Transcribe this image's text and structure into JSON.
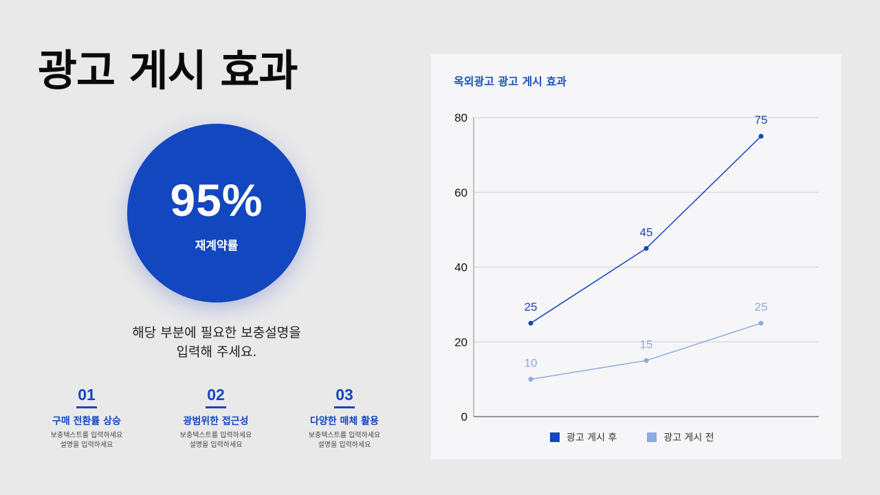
{
  "page": {
    "title": "광고 게시 효과"
  },
  "highlight": {
    "value": "95%",
    "label": "재계약률",
    "color": "#1247c0"
  },
  "description": {
    "line1": "해당 부분에 필요한 보충설명을",
    "line2": "입력해 주세요."
  },
  "features": [
    {
      "number": "01",
      "heading": "구매 전환률 상승",
      "body1": "보충텍스트를 입력하세요",
      "body2": "설명을 입력하세요"
    },
    {
      "number": "02",
      "heading": "광범위한 접근성",
      "body1": "보충텍스트를 입력하세요",
      "body2": "설명을 입력하세요"
    },
    {
      "number": "03",
      "heading": "다양한 매체 활용",
      "body1": "보충텍스트를 입력하세요",
      "body2": "설명을 입력하세요"
    }
  ],
  "chart_data": {
    "type": "line",
    "title": "옥외광고 광고 게시 효과",
    "xlabel": "",
    "ylabel": "",
    "categories": [
      "",
      "",
      ""
    ],
    "ylim": [
      0,
      80
    ],
    "yticks": [
      0,
      20,
      40,
      60,
      80
    ],
    "grid": true,
    "legend_position": "bottom",
    "series": [
      {
        "name": "광고 게시 후",
        "values": [
          25,
          45,
          75
        ],
        "color": "#1247c0"
      },
      {
        "name": "광고 게시 전",
        "values": [
          10,
          15,
          25
        ],
        "color": "#8eaae0"
      }
    ]
  }
}
